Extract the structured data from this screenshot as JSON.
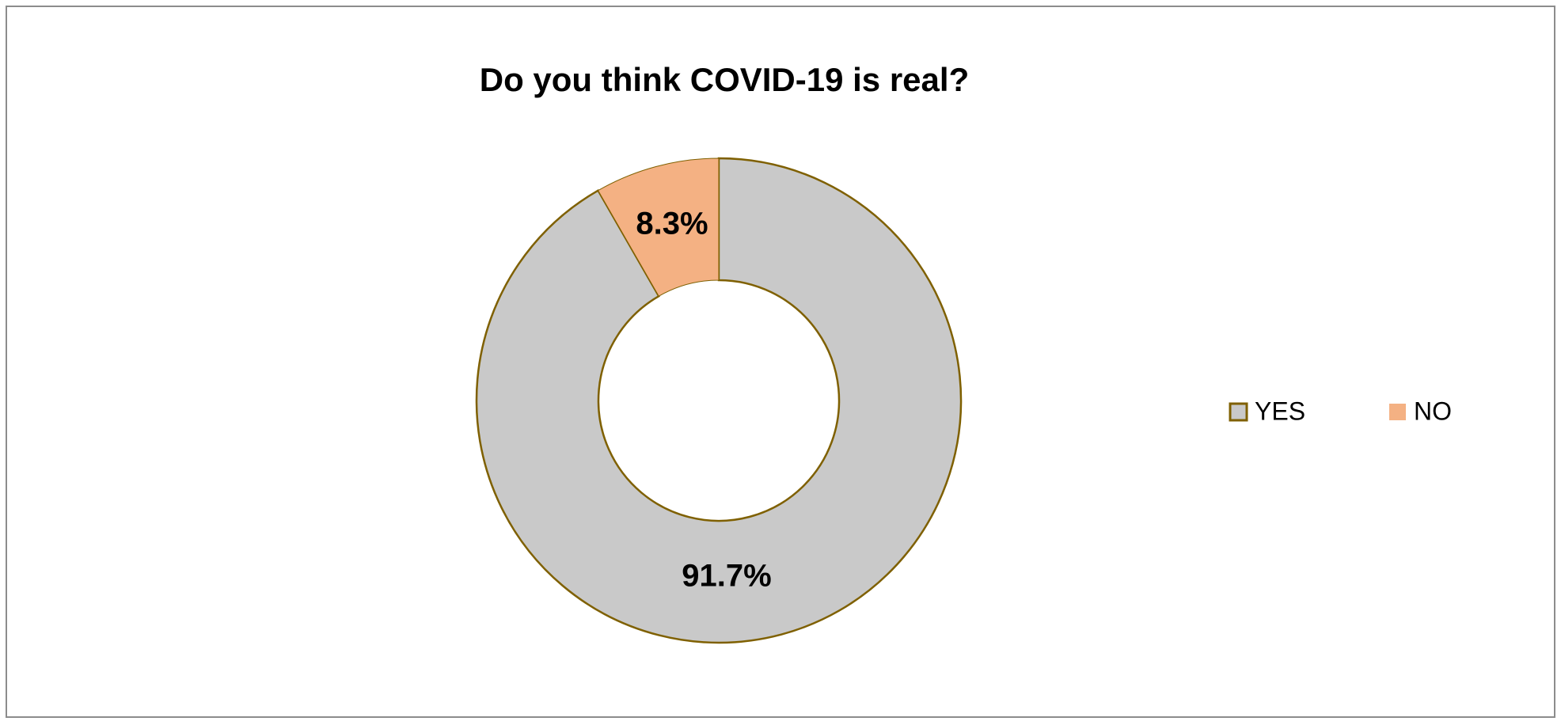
{
  "chart_data": {
    "type": "donut",
    "title": "Do you think COVID-19 is real?",
    "categories": [
      "YES",
      "NO"
    ],
    "values": [
      91.7,
      8.3
    ],
    "value_labels": [
      "91.7%",
      "8.3%"
    ],
    "colors": [
      "#c9c9c9",
      "#f4b183"
    ],
    "legend": "right"
  }
}
